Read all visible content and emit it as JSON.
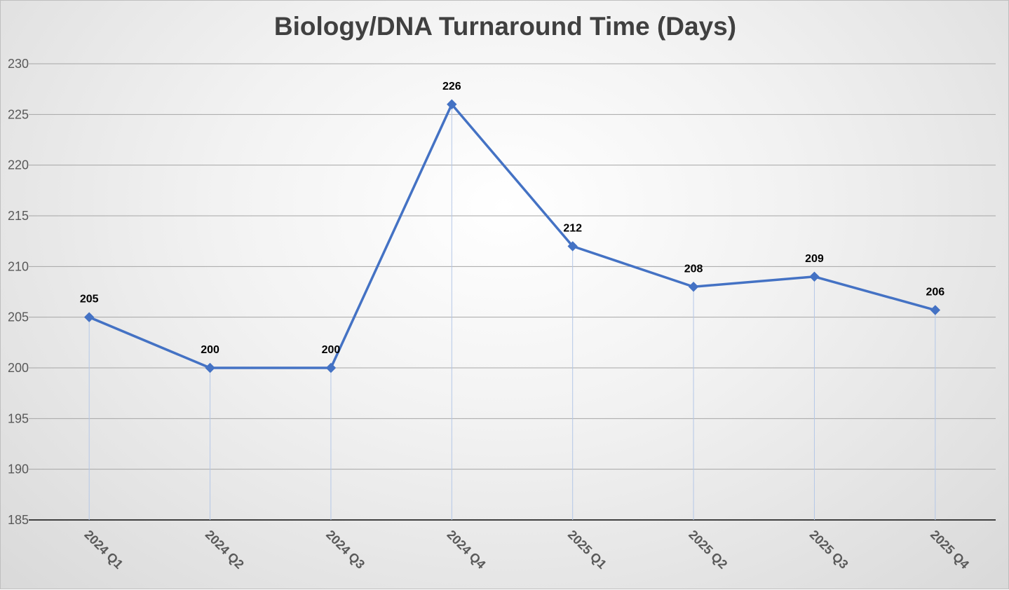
{
  "chart_data": {
    "type": "line",
    "title": "Biology/DNA Turnaround Time (Days)",
    "xlabel": "",
    "ylabel": "",
    "categories": [
      "2024 Q1",
      "2024 Q2",
      "2024 Q3",
      "2024 Q4",
      "2025 Q1",
      "2025 Q2",
      "2025 Q3",
      "2025 Q4"
    ],
    "series": [
      {
        "values": [
          205,
          200,
          200,
          226,
          212,
          208,
          209,
          205.7
        ],
        "labels": [
          "205",
          "200",
          "200",
          "226",
          "212",
          "208",
          "209",
          "206"
        ],
        "color": "#4472c4",
        "marker": "diamond"
      }
    ],
    "ylim": [
      185,
      230
    ],
    "yticks": [
      "185",
      "190",
      "195",
      "200",
      "205",
      "210",
      "215",
      "220",
      "225",
      "230"
    ],
    "grid": true,
    "drop_lines": true,
    "legend": "none"
  }
}
